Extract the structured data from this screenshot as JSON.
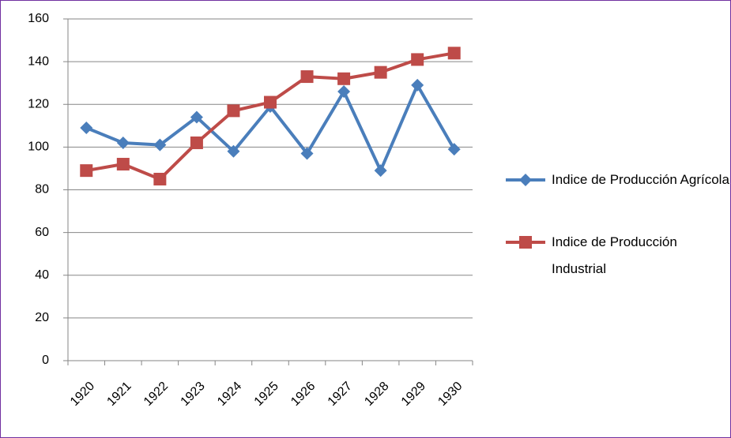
{
  "chart_data": {
    "type": "line",
    "categories": [
      "1920",
      "1921",
      "1922",
      "1923",
      "1924",
      "1925",
      "1926",
      "1927",
      "1928",
      "1929",
      "1930"
    ],
    "series": [
      {
        "name": "Indice de Producción Agrícola",
        "color": "#4a7ebb",
        "marker": "diamond",
        "values": [
          109,
          102,
          101,
          114,
          98,
          119,
          97,
          126,
          89,
          129,
          99
        ]
      },
      {
        "name": "Indice de Producción Industrial",
        "color": "#be4b48",
        "marker": "square",
        "values": [
          89,
          92,
          85,
          102,
          117,
          121,
          133,
          132,
          135,
          141,
          144
        ]
      }
    ],
    "ylim": [
      0,
      160
    ],
    "yticks": [
      0,
      20,
      40,
      60,
      80,
      100,
      120,
      140,
      160
    ],
    "grid": true,
    "legend": "right"
  }
}
